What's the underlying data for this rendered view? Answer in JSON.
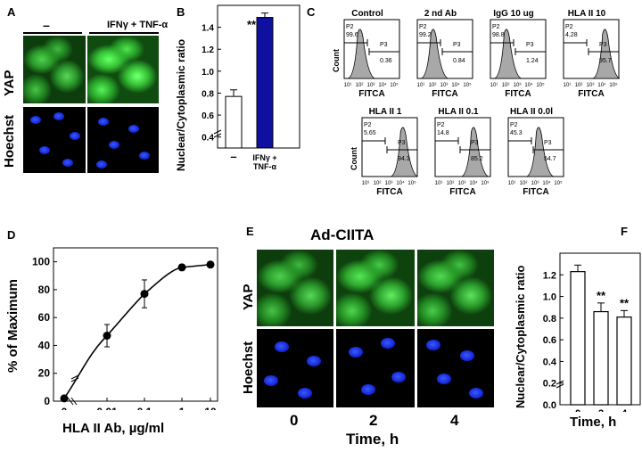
{
  "panelA": {
    "label": "A",
    "cond1": "–",
    "cond2": "IFNγ + TNF-α",
    "row1": "YAP",
    "row2": "Hoechst"
  },
  "panelB": {
    "label": "B",
    "ylabel": "Nuclear/Cytoplasmic ratio",
    "significance": "**",
    "xtick1": "–",
    "xtick2a": "IFNγ +",
    "xtick2b": "TNF-α",
    "yticks": [
      "0.4",
      "0.6",
      "0.8",
      "1.0",
      "1.2",
      "1.4"
    ]
  },
  "panelC": {
    "label": "C",
    "xaxis_label": "FITCA",
    "yaxis_label": "Count",
    "hists": [
      {
        "title": "Control",
        "p2": "99.6",
        "p3": "0.36"
      },
      {
        "title": "2 nd Ab",
        "p2": "99.2",
        "p3": "0.84"
      },
      {
        "title": "IgG 10 ug",
        "p2": "98.8",
        "p3": "1.24"
      },
      {
        "title": "HLA II 10",
        "p2": "4.28",
        "p3": "95.7"
      },
      {
        "title": "HLA II 1",
        "p2": "5.65",
        "p3": "94.3"
      },
      {
        "title": "HLA II 0.1",
        "p2": "14.8",
        "p3": "85.2"
      },
      {
        "title": "HLA II 0.0l",
        "p2": "45.3",
        "p3": "54.7"
      }
    ],
    "p2_label": "P2",
    "p3_label": "P3"
  },
  "panelD": {
    "label": "D",
    "ylabel": "% of Maximum",
    "xlabel": "HLA II Ab, µg/ml",
    "xticks": [
      "0",
      "0.01",
      "0.1",
      "1",
      "10"
    ],
    "yticks": [
      "0",
      "20",
      "40",
      "60",
      "80",
      "100"
    ]
  },
  "panelE": {
    "label": "E",
    "title": "Ad-CIITA",
    "row1": "YAP",
    "row2": "Hoechst",
    "times": [
      "0",
      "2",
      "4"
    ],
    "xlabel": "Time, h"
  },
  "panelF": {
    "label": "F",
    "ylabel": "Nuclear/Cytoplasmic ratio",
    "xlabel": "Time, h",
    "xticks": [
      "0",
      "2",
      "4"
    ],
    "yticks": [
      "0.0",
      "0.2",
      "0.4",
      "0.6",
      "0.8",
      "1.0",
      "1.2"
    ],
    "significance": [
      "**",
      "**"
    ]
  },
  "chart_data": [
    {
      "type": "bar",
      "categories": [
        "–",
        "IFNγ + TNF-α"
      ],
      "values": [
        0.77,
        1.49
      ],
      "errors": [
        0.06,
        0.04
      ],
      "ylabel": "Nuclear/Cytoplasmic ratio",
      "ylim": [
        0.4,
        1.6
      ],
      "colors": [
        "#ffffff",
        "#1010a0"
      ]
    },
    {
      "type": "line",
      "xlabel": "HLA II Ab, µg/ml",
      "ylabel": "% of Maximum",
      "x": [
        0,
        0.01,
        0.1,
        1,
        10
      ],
      "y": [
        2,
        47,
        77,
        96,
        98
      ],
      "errors": [
        0,
        8,
        10,
        2,
        1
      ],
      "ylim": [
        0,
        110
      ]
    },
    {
      "type": "bar",
      "categories": [
        "0",
        "2",
        "4"
      ],
      "values": [
        1.23,
        0.86,
        0.81
      ],
      "errors": [
        0.06,
        0.08,
        0.06
      ],
      "ylabel": "Nuclear/Cytoplasmic ratio",
      "xlabel": "Time, h",
      "ylim": [
        0.0,
        1.4
      ]
    }
  ]
}
